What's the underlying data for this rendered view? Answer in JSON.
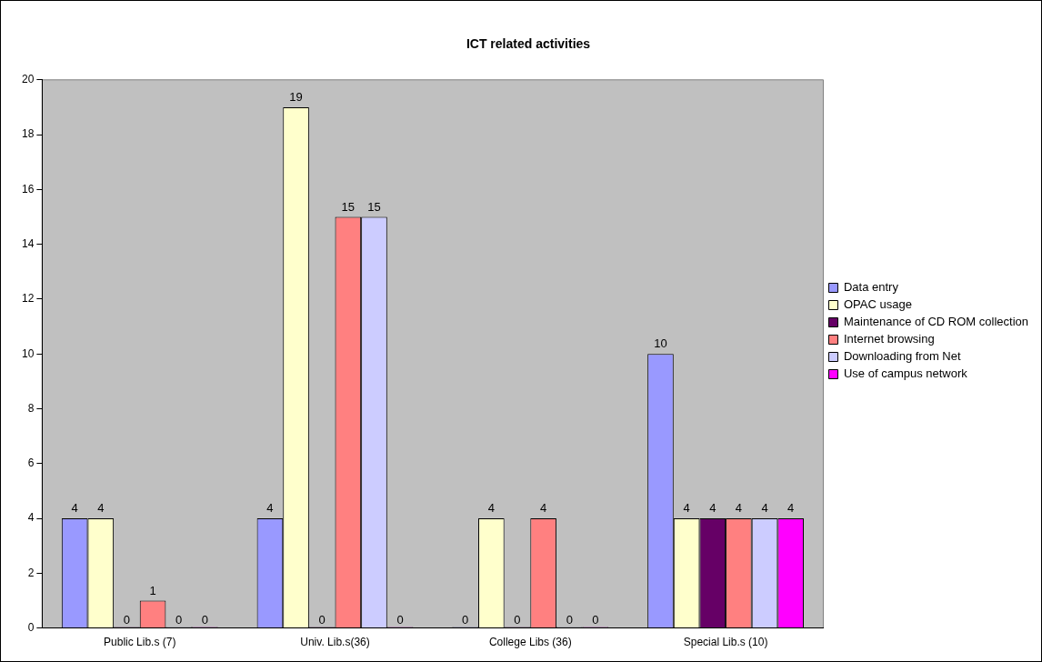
{
  "chart_data": {
    "type": "bar",
    "title": "ICT related activities",
    "categories": [
      "Public Lib.s (7)",
      "Univ. Lib.s(36)",
      "College Libs (36)",
      "Special Lib.s (10)"
    ],
    "series": [
      {
        "name": "Data entry",
        "color": "#9999ff",
        "values": [
          4,
          4,
          0,
          10
        ]
      },
      {
        "name": "OPAC usage",
        "color": "#ffffcc",
        "values": [
          4,
          19,
          4,
          4
        ]
      },
      {
        "name": "Maintenance of CD ROM collection",
        "color": "#660066",
        "values": [
          0,
          0,
          0,
          4
        ]
      },
      {
        "name": "Internet browsing",
        "color": "#ff8080",
        "values": [
          1,
          15,
          4,
          4
        ]
      },
      {
        "name": "Downloading from Net",
        "color": "#ccccff",
        "values": [
          0,
          15,
          0,
          4
        ]
      },
      {
        "name": "Use of campus network",
        "color": "#ff00ff",
        "values": [
          0,
          0,
          0,
          4
        ]
      }
    ],
    "ylim": [
      0,
      20
    ],
    "yticks": [
      0,
      2,
      4,
      6,
      8,
      10,
      12,
      14,
      16,
      18,
      20
    ],
    "grid": false,
    "legend": "right",
    "data_labels": true
  }
}
